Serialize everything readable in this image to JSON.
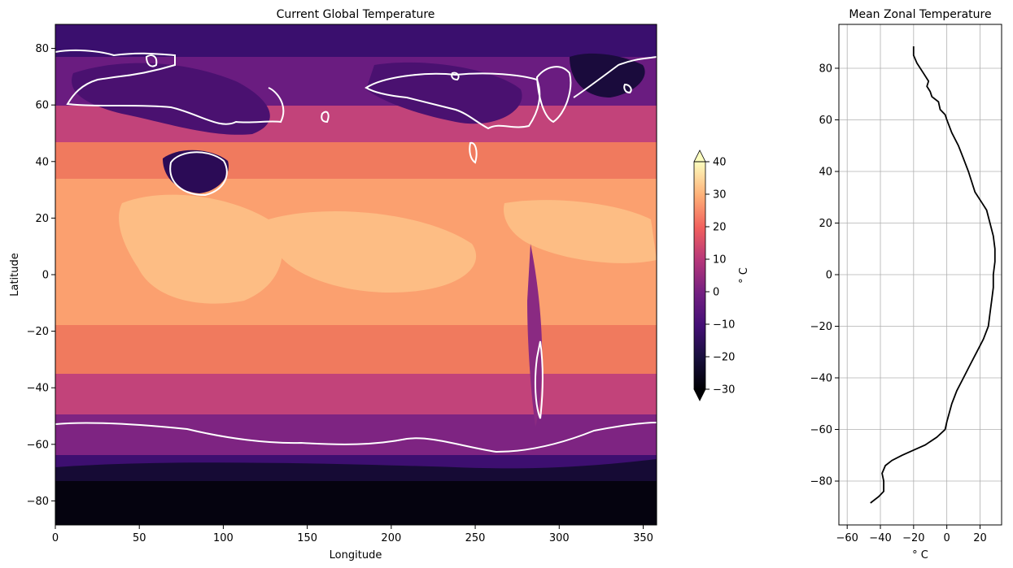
{
  "chart_data": [
    {
      "type": "heatmap",
      "title": "Current Global Temperature",
      "xlabel": "Longitude",
      "ylabel": "Latitude",
      "xlim": [
        0,
        358
      ],
      "ylim": [
        -88.5,
        88.5
      ],
      "xticks": [
        0,
        50,
        100,
        150,
        200,
        250,
        300,
        350
      ],
      "yticks": [
        -80,
        -60,
        -40,
        -20,
        0,
        20,
        40,
        60,
        80
      ],
      "colormap": "magma",
      "contour_line_color": "#ffffff",
      "contour_level": 0,
      "colorbar": {
        "label": "° C",
        "levels": [
          -30,
          -25,
          -20,
          -15,
          -10,
          -5,
          0,
          5,
          10,
          15,
          20,
          25,
          30,
          35,
          40
        ],
        "ticks": [
          -30,
          -20,
          -10,
          0,
          10,
          20,
          30,
          40
        ],
        "extend": "both"
      },
      "grid": false
    },
    {
      "type": "line",
      "title": "Mean Zonal Temperature",
      "xlabel": "° C",
      "ylabel": "",
      "xlim": [
        -65,
        33
      ],
      "ylim": [
        -97,
        97
      ],
      "xticks": [
        -60,
        -40,
        -20,
        0,
        20
      ],
      "yticks": [
        -80,
        -60,
        -40,
        -20,
        0,
        20,
        40,
        60,
        80
      ],
      "grid": true,
      "line_color": "#000000",
      "series": [
        {
          "x": [
            -46,
            -41,
            -38,
            -38,
            -39,
            -37,
            -33,
            -27,
            -20,
            -13,
            -6,
            -1,
            0,
            3,
            6,
            10,
            14,
            18,
            22,
            25,
            26,
            27,
            28,
            28,
            29,
            29,
            28,
            26,
            24,
            22,
            17,
            13,
            10,
            7,
            3,
            0,
            -1,
            -4,
            -5,
            -9,
            -10,
            -12,
            -11,
            -14,
            -18,
            -20,
            -20
          ],
          "y": [
            -88.5,
            -86,
            -84,
            -80,
            -77,
            -74,
            -72,
            -70,
            -68,
            -66,
            -63,
            -60,
            -57,
            -50,
            -45,
            -40,
            -35,
            -30,
            -25,
            -20,
            -15,
            -10,
            -5,
            0,
            5,
            10,
            15,
            20,
            25,
            27,
            32,
            40,
            45,
            50,
            55,
            60,
            62,
            64,
            67,
            69,
            71,
            73,
            75,
            78,
            82,
            85,
            88.5
          ]
        }
      ]
    }
  ]
}
